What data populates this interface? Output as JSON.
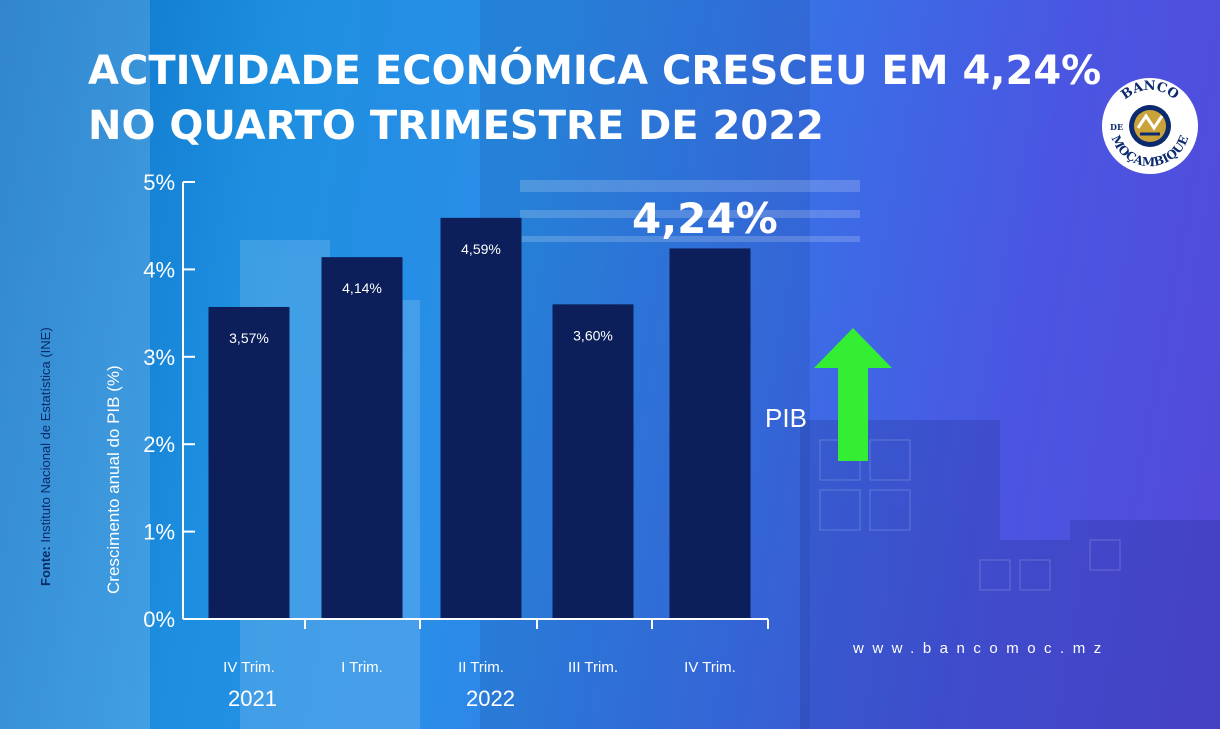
{
  "title": {
    "line1": "ACTIVIDADE ECONÓMICA CRESCEU EM 4,24%",
    "line2": "NO QUARTO TRIMESTRE DE 2022"
  },
  "source": {
    "label": "Fonte:",
    "text": " Instituto Nacional de Estatística (INE)"
  },
  "logo": {
    "text_top": "BANCO",
    "text_mid": "DE",
    "text_bottom": "MOÇAMBIQUE"
  },
  "indicator": {
    "label": "PIB",
    "arrow": "up-arrow-icon",
    "arrow_color": "#33ee33"
  },
  "highlight_value": "4,24%",
  "website": "www.bancomoc.mz",
  "years": [
    "2021",
    "2022"
  ],
  "chart_data": {
    "type": "bar",
    "categories": [
      "IV Trim.",
      "I Trim.",
      "II Trim.",
      "III Trim.",
      "IV Trim."
    ],
    "values": [
      3.57,
      4.14,
      4.59,
      3.6,
      4.24
    ],
    "data_labels": [
      "3,57%",
      "4,14%",
      "4,59%",
      "3,60%",
      ""
    ],
    "ylabel": "Crescimento anual do PIB (%)",
    "ylim": [
      0,
      5
    ],
    "yticks": [
      "0%",
      "1%",
      "2%",
      "3%",
      "4%",
      "5%"
    ],
    "bar_color": "#0c1f5a",
    "grid": false
  }
}
